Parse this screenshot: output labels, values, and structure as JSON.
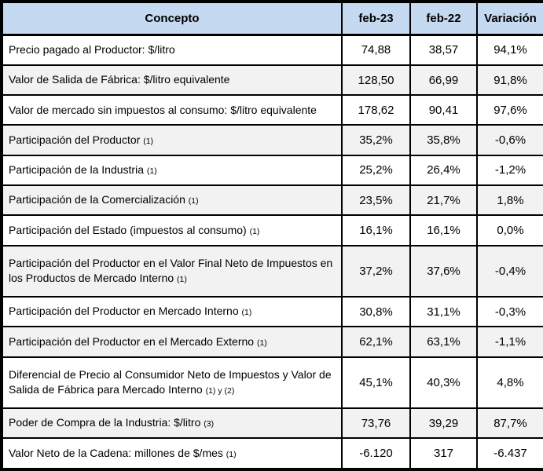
{
  "chart_data": {
    "type": "table",
    "columns": [
      "Concepto",
      "feb-23",
      "feb-22",
      "Variación"
    ],
    "rows": [
      {
        "concepto": "Precio pagado al Productor: $/litro",
        "note": "",
        "feb23": "74,88",
        "feb22": "38,57",
        "variacion": "94,1%"
      },
      {
        "concepto": "Valor de Salida de Fábrica: $/litro equivalente",
        "note": "",
        "feb23": "128,50",
        "feb22": "66,99",
        "variacion": "91,8%"
      },
      {
        "concepto": "Valor de mercado sin impuestos al consumo: $/litro equivalente",
        "note": "",
        "feb23": "178,62",
        "feb22": "90,41",
        "variacion": "97,6%"
      },
      {
        "concepto": "Participación del Productor",
        "note": "(1)",
        "feb23": "35,2%",
        "feb22": "35,8%",
        "variacion": "-0,6%"
      },
      {
        "concepto": "Participación de la Industria",
        "note": "(1)",
        "feb23": "25,2%",
        "feb22": "26,4%",
        "variacion": "-1,2%"
      },
      {
        "concepto": "Participación de la Comercialización",
        "note": "(1)",
        "feb23": "23,5%",
        "feb22": "21,7%",
        "variacion": "1,8%"
      },
      {
        "concepto": "Participación del Estado (impuestos al consumo)",
        "note": "(1)",
        "feb23": "16,1%",
        "feb22": "16,1%",
        "variacion": "0,0%"
      },
      {
        "concepto": "Participación del Productor en el Valor Final Neto de Impuestos en los Productos de Mercado Interno",
        "note": "(1)",
        "feb23": "37,2%",
        "feb22": "37,6%",
        "variacion": "-0,4%"
      },
      {
        "concepto": "Participación del Productor en Mercado Interno",
        "note": "(1)",
        "feb23": "30,8%",
        "feb22": "31,1%",
        "variacion": "-0,3%"
      },
      {
        "concepto": "Participación del Productor en el Mercado Externo",
        "note": "(1)",
        "feb23": "62,1%",
        "feb22": "63,1%",
        "variacion": "-1,1%"
      },
      {
        "concepto": "Diferencial de Precio al Consumidor Neto de Impuestos y Valor de Salida de Fábrica para Mercado Interno",
        "note": "(1) y (2)",
        "feb23": "45,1%",
        "feb22": "40,3%",
        "variacion": "4,8%"
      },
      {
        "concepto": "Poder de Compra de la Industria: $/litro",
        "note": "(3)",
        "feb23": "73,76",
        "feb22": "39,29",
        "variacion": "87,7%"
      },
      {
        "concepto": "Valor Neto de la Cadena: millones de $/mes",
        "note": "(1)",
        "feb23": "-6.120",
        "feb22": "317",
        "variacion": "-6.437"
      }
    ]
  },
  "colors": {
    "header_bg": "#c5d9f1",
    "alt_row_bg": "#f2f2f2",
    "border": "#000000"
  }
}
